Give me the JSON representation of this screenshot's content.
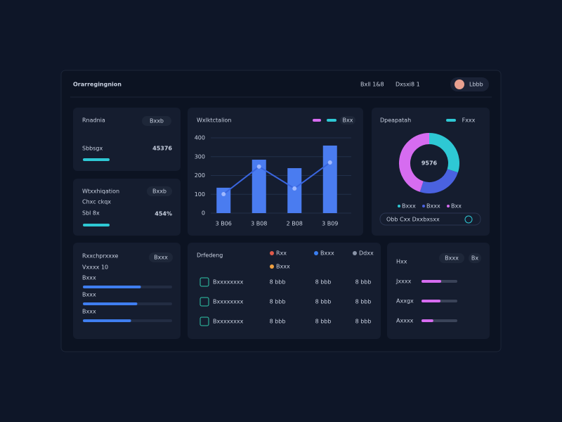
{
  "header": {
    "title": "Orarregingnion",
    "links": [
      "Bxll 1&8",
      "Dxsxi8 1"
    ],
    "user": "Lbbb"
  },
  "cards": [
    {
      "title": "Rnadnia",
      "button": "Bxxb",
      "sublabel": "Sbbsgx",
      "value": "45376"
    },
    {
      "title": "Wtxxhiqation",
      "button": "Bxxb",
      "sublabel": "Chxc ckqx",
      "label": "Sbl 8x",
      "value": "454%"
    }
  ],
  "bar_chart": {
    "title": "Wxlktctalion",
    "badge": "Bxx",
    "categories": [
      "3 B06",
      "3 B08",
      "2 B08",
      "3 B09"
    ],
    "bars": [
      135,
      284,
      239,
      359
    ],
    "line": [
      101,
      247,
      131,
      269
    ],
    "bar_color": "#4a7cf0",
    "line_color": "#3a66e0",
    "ylim": [
      0,
      400
    ],
    "yticks": [
      0,
      100,
      200,
      300,
      400
    ]
  },
  "donut": {
    "title": "Dpeapatah",
    "badge": "Fxxx",
    "center": "9576",
    "values": [
      30,
      25,
      45
    ],
    "colors": [
      "#2ec8d4",
      "#4a62e0",
      "#d66cf0"
    ],
    "legend": [
      "Bxxx",
      "Bxxx",
      "Bxx"
    ],
    "footer": "Obb Cxx Dxxbxsxx"
  },
  "progress_card": {
    "title": "Rxxchprxxxe",
    "subtitle": "Vxxxx 10",
    "button": "Bxxx",
    "rows": [
      {
        "label": "Bxxx",
        "value": 65
      },
      {
        "label": "Bxxx",
        "value": 61
      },
      {
        "label": "Bxxx",
        "value": 54
      }
    ]
  },
  "table": {
    "title": "Drfedeng",
    "columns": [
      "Rxx",
      "Bxxx",
      "Ddxx",
      "Bxxx"
    ],
    "rows": [
      [
        "Bxxxxxxxx",
        "8 bbb",
        "8 bbb",
        "8 bbb"
      ],
      [
        "Bxxxxxxxx",
        "8 bbb",
        "8 bbb",
        "8 bbb"
      ],
      [
        "Bxxxxxxxx",
        "8 bbb",
        "8 bbb",
        "8 bbb"
      ]
    ]
  },
  "ranking": {
    "title": "Hxx",
    "button": "Bxxx",
    "button2": "Bx",
    "rows": [
      {
        "label": "Jxxxx",
        "value": 55
      },
      {
        "label": "Axxgx",
        "value": 53
      },
      {
        "label": "Axxxx",
        "value": 33
      }
    ]
  }
}
